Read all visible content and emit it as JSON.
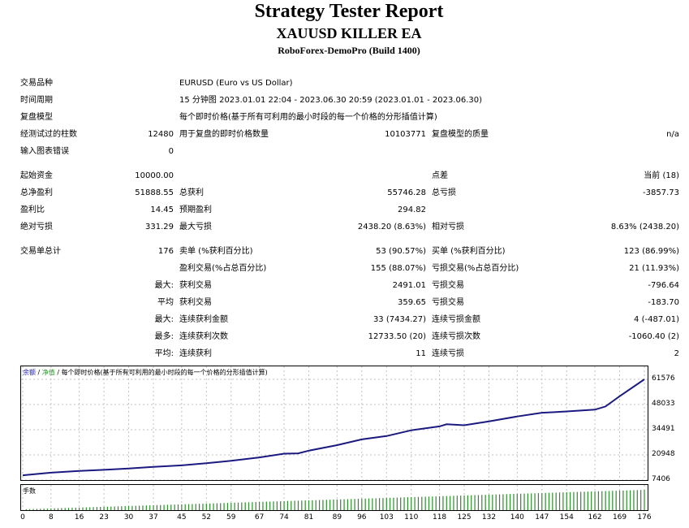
{
  "header": {
    "title": "Strategy Tester Report",
    "ea_name": "XAUUSD KILLER EA",
    "server": "RoboForex-DemoPro (Build 1400)"
  },
  "settings": {
    "symbol_label": "交易品种",
    "symbol_value": "EURUSD (Euro vs US Dollar)",
    "period_label": "时间周期",
    "period_value": "15 分钟图 2023.01.01 22:04 - 2023.06.30 20:59 (2023.01.01 - 2023.06.30)",
    "model_label": "复盘模型",
    "model_value": "每个即时价格(基于所有可利用的最小时段的每一个价格的分形插值计算)",
    "bars_label": "经测试过的柱数",
    "bars_value": "12480",
    "ticks_label": "用于复盘的即时价格数量",
    "ticks_value": "10103771",
    "quality_label": "复盘模型的质量",
    "quality_value": "n/a",
    "errors_label": "输入图表错误",
    "errors_value": "0"
  },
  "results": {
    "deposit_label": "起始资金",
    "deposit_value": "10000.00",
    "spread_label": "点差",
    "spread_value": "当前 (18)",
    "net_profit_label": "总净盈利",
    "net_profit_value": "51888.55",
    "gross_profit_label": "总获利",
    "gross_profit_value": "55746.28",
    "gross_loss_label": "总亏损",
    "gross_loss_value": "-3857.73",
    "profit_factor_label": "盈利比",
    "profit_factor_value": "14.45",
    "expected_payoff_label": "预期盈利",
    "expected_payoff_value": "294.82",
    "abs_dd_label": "绝对亏损",
    "abs_dd_value": "331.29",
    "max_dd_label": "最大亏损",
    "max_dd_value": "2438.20 (8.63%)",
    "rel_dd_label": "相对亏损",
    "rel_dd_value": "8.63% (2438.20)"
  },
  "trades": {
    "total_label": "交易单总计",
    "total_value": "176",
    "short_label": "卖单 (%获利百分比)",
    "short_value": "53 (90.57%)",
    "long_label": "买单 (%获利百分比)",
    "long_value": "123 (86.99%)",
    "profit_trades_label": "盈利交易(%占总百分比)",
    "profit_trades_value": "155 (88.07%)",
    "loss_trades_label": "亏损交易(%占总百分比)",
    "loss_trades_value": "21 (11.93%)",
    "largest_prefix": "最大:",
    "largest_profit_label": "获利交易",
    "largest_profit_value": "2491.01",
    "largest_loss_label": "亏损交易",
    "largest_loss_value": "-796.64",
    "average_prefix": "平均",
    "avg_profit_label": "获利交易",
    "avg_profit_value": "359.65",
    "avg_loss_label": "亏损交易",
    "avg_loss_value": "-183.70",
    "max_prefix": "最大:",
    "max_consec_wins_label": "连续获利金额",
    "max_consec_wins_value": "33 (7434.27)",
    "max_consec_losses_label": "连续亏损金额",
    "max_consec_losses_value": "4 (-487.01)",
    "maximal_prefix": "最多:",
    "maximal_consec_profit_label": "连续获利次数",
    "maximal_consec_profit_value": "12733.50 (20)",
    "maximal_consec_loss_label": "连续亏损次数",
    "maximal_consec_loss_value": "-1060.40 (2)",
    "avg_consec_prefix": "平均:",
    "avg_consec_wins_label": "连续获利",
    "avg_consec_wins_value": "11",
    "avg_consec_losses_label": "连续亏损",
    "avg_consec_losses_value": "2"
  },
  "chart_legend": {
    "balance": "余额",
    "sep": " / ",
    "equity": "净值",
    "model": " / 每个即时价格(基于所有可利用的最小时段的每一个价格的分形插值计算)"
  },
  "volume_label": "手数",
  "colors": {
    "balance_line": "#1a1a80",
    "volume_bar": "#2e8b2e",
    "grid": "#c0c0c0"
  },
  "chart_data": {
    "type": "line",
    "y_ticks": [
      "61576",
      "48033",
      "34491",
      "20948",
      "7406"
    ],
    "x_ticks": [
      "0",
      "8",
      "16",
      "23",
      "30",
      "37",
      "45",
      "52",
      "59",
      "67",
      "74",
      "81",
      "89",
      "96",
      "103",
      "110",
      "118",
      "125",
      "132",
      "140",
      "147",
      "154",
      "162",
      "169",
      "176"
    ],
    "xlim": [
      0,
      176
    ],
    "ylim": [
      7406,
      61576
    ],
    "series": [
      {
        "values": [
          [
            0,
            10000
          ],
          [
            8,
            11400
          ],
          [
            16,
            12300
          ],
          [
            23,
            12900
          ],
          [
            30,
            13600
          ],
          [
            37,
            14500
          ],
          [
            45,
            15300
          ],
          [
            52,
            16500
          ],
          [
            59,
            17800
          ],
          [
            67,
            19600
          ],
          [
            74,
            21600
          ],
          [
            78,
            21800
          ],
          [
            81,
            23200
          ],
          [
            89,
            26200
          ],
          [
            96,
            29300
          ],
          [
            103,
            31100
          ],
          [
            110,
            34200
          ],
          [
            118,
            36300
          ],
          [
            120,
            37400
          ],
          [
            125,
            36900
          ],
          [
            132,
            39000
          ],
          [
            140,
            41600
          ],
          [
            147,
            43600
          ],
          [
            150,
            43900
          ],
          [
            154,
            44300
          ],
          [
            162,
            45300
          ],
          [
            165,
            47000
          ],
          [
            169,
            52500
          ],
          [
            176,
            61576
          ]
        ]
      }
    ],
    "volume": {
      "start": 0.1,
      "end": 0.9
    }
  }
}
